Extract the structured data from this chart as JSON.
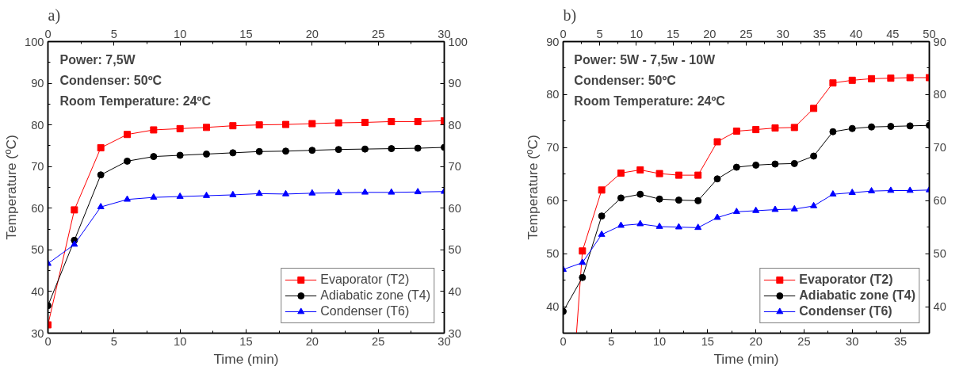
{
  "chart_data": [
    {
      "type": "line",
      "title": "a)",
      "xlabel": "Time (min)",
      "ylabel": "Temperature (ºC)",
      "annotations": [
        "Power: 7,5W",
        "Condenser: 50ºC",
        "Room Temperature: 24ºC"
      ],
      "x": [
        0,
        2,
        4,
        6,
        8,
        10,
        12,
        14,
        16,
        18,
        20,
        22,
        24,
        26,
        28,
        30
      ],
      "series": [
        {
          "name": "Evaporator (T2)",
          "color": "#ff0000",
          "marker": "square",
          "values": [
            32.0,
            59.6,
            74.5,
            77.7,
            78.8,
            79.1,
            79.4,
            79.8,
            80.0,
            80.1,
            80.3,
            80.5,
            80.6,
            80.8,
            80.8,
            81.0
          ]
        },
        {
          "name": "Adiabatic zone (T4)",
          "color": "#000000",
          "marker": "circle",
          "values": [
            36.6,
            52.3,
            68.0,
            71.3,
            72.4,
            72.7,
            73.0,
            73.3,
            73.6,
            73.7,
            73.9,
            74.1,
            74.2,
            74.3,
            74.4,
            74.6
          ]
        },
        {
          "name": "Condenser (T6)",
          "color": "#0000ff",
          "marker": "triangle",
          "values": [
            46.7,
            51.3,
            60.3,
            62.1,
            62.6,
            62.8,
            63.0,
            63.2,
            63.5,
            63.4,
            63.6,
            63.7,
            63.8,
            63.8,
            63.9,
            64.0
          ]
        }
      ],
      "xlim": [
        0,
        30
      ],
      "xticks": [
        0,
        5,
        10,
        15,
        20,
        25,
        30
      ],
      "x2lim": [
        0,
        30
      ],
      "x2ticks": [
        0,
        5,
        10,
        15,
        20,
        25,
        30
      ],
      "ylim": [
        30,
        100
      ],
      "yticks": [
        30,
        40,
        50,
        60,
        70,
        80,
        90,
        100
      ],
      "y2lim": [
        30,
        100
      ],
      "y2ticks": [
        30,
        40,
        50,
        60,
        70,
        80,
        90,
        100
      ],
      "grid": false,
      "legend": "bottom right",
      "line_style": "solid"
    },
    {
      "type": "line",
      "title": "b)",
      "xlabel": "Time (min)",
      "ylabel": "Temperature (ºC)",
      "annotations": [
        "Power: 5W - 7,5w - 10W",
        "Condenser: 50ºC",
        "Room Temperature: 24ºC"
      ],
      "x": [
        0,
        2,
        4,
        6,
        8,
        10,
        12,
        14,
        16,
        18,
        20,
        22,
        24,
        26,
        28,
        30,
        32,
        34,
        36,
        38
      ],
      "series": [
        {
          "name": "Evaporator (T2)",
          "color": "#ff0000",
          "marker": "square",
          "values": [
            null,
            50.5,
            62.0,
            65.2,
            65.8,
            65.1,
            64.8,
            64.8,
            71.1,
            73.1,
            73.4,
            73.7,
            73.8,
            77.4,
            82.2,
            82.7,
            83.0,
            83.1,
            83.2,
            83.2
          ]
        },
        {
          "name": "Adiabatic zone (T4)",
          "color": "#000000",
          "marker": "circle",
          "values": [
            39.1,
            45.5,
            57.1,
            60.5,
            61.2,
            60.3,
            60.1,
            60.0,
            64.1,
            66.3,
            66.7,
            66.9,
            67.0,
            68.4,
            73.0,
            73.6,
            73.9,
            74.0,
            74.1,
            74.2
          ]
        },
        {
          "name": "Condenser (T6)",
          "color": "#0000ff",
          "marker": "triangle",
          "values": [
            47.0,
            48.3,
            53.6,
            55.3,
            55.6,
            55.1,
            55.0,
            54.9,
            56.8,
            57.9,
            58.1,
            58.3,
            58.4,
            59.0,
            61.2,
            61.5,
            61.8,
            61.9,
            61.9,
            62.0
          ]
        }
      ],
      "xlim": [
        0,
        38
      ],
      "xticks": [
        0,
        5,
        10,
        15,
        20,
        25,
        30,
        35
      ],
      "x2lim": [
        0,
        50
      ],
      "x2ticks": [
        0,
        5,
        10,
        15,
        20,
        25,
        30,
        35,
        40,
        45,
        50
      ],
      "ylim": [
        35,
        90
      ],
      "yticks": [
        40,
        50,
        60,
        70,
        80,
        90
      ],
      "y2lim": [
        35,
        90
      ],
      "y2ticks": [
        40,
        50,
        60,
        70,
        80,
        90
      ],
      "grid": false,
      "legend": "bottom right",
      "line_style": "solid"
    }
  ]
}
